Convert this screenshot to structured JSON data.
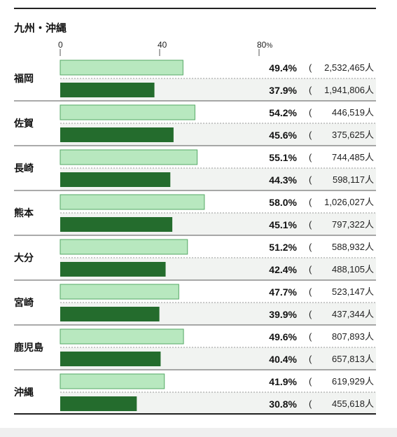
{
  "chart_data": {
    "type": "bar",
    "title": "九州・沖縄",
    "axis_ticks": [
      "0",
      "40",
      "80%"
    ],
    "xlim": [
      0,
      80
    ],
    "colors": {
      "first": "#b8e8bf",
      "first_border": "#55a865",
      "second": "#246c2d",
      "band": "#f1f3f1"
    },
    "categories": [
      "福岡",
      "佐賀",
      "長崎",
      "熊本",
      "大分",
      "宮崎",
      "鹿児島",
      "沖縄"
    ],
    "series": [
      {
        "values": [
          49.4,
          54.2,
          55.1,
          58.0,
          51.2,
          47.7,
          49.6,
          41.9
        ],
        "labels": [
          "49.4%",
          "54.2%",
          "55.1%",
          "58.0%",
          "51.2%",
          "47.7%",
          "49.6%",
          "41.9%"
        ],
        "counts": [
          "2,532,465人",
          "446,519人",
          "744,485人",
          "1,026,027人",
          "588,932人",
          "523,147人",
          "807,893人",
          "619,929人"
        ]
      },
      {
        "values": [
          37.9,
          45.6,
          44.3,
          45.1,
          42.4,
          39.9,
          40.4,
          30.8
        ],
        "labels": [
          "37.9%",
          "45.6%",
          "44.3%",
          "45.1%",
          "42.4%",
          "39.9%",
          "40.4%",
          "30.8%"
        ],
        "counts": [
          "1,941,806人",
          "375,625人",
          "598,117人",
          "797,322人",
          "488,105人",
          "437,344人",
          "657,813人",
          "455,618人"
        ]
      }
    ]
  }
}
